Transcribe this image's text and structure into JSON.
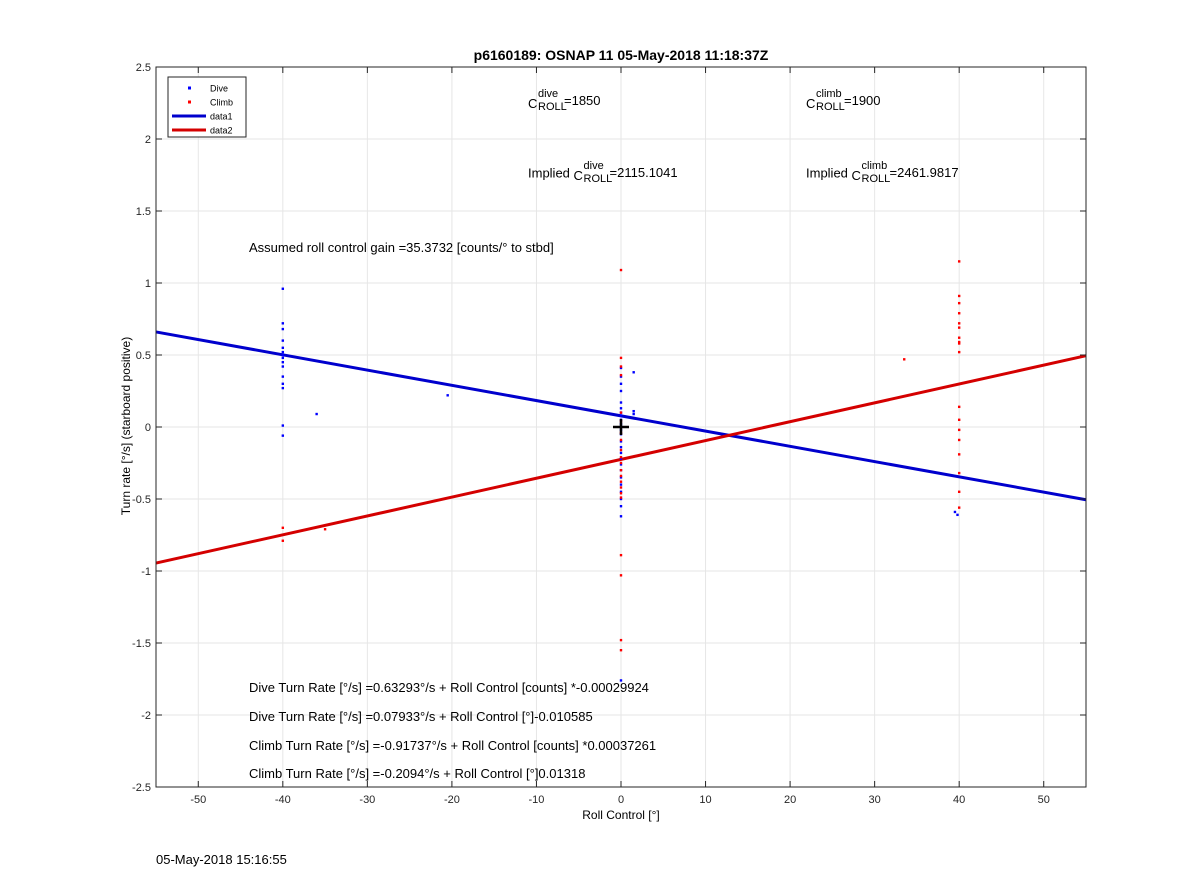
{
  "title": "p6160189: OSNAP 11 05-May-2018 11:18:37Z",
  "timestamp": "05-May-2018 15:16:55",
  "chart_data": {
    "type": "scatter",
    "title": "p6160189: OSNAP 11 05-May-2018 11:18:37Z",
    "xlabel": "Roll Control [°]",
    "ylabel": "Turn rate [°/s] (starboard positive)",
    "xlim": [
      -55,
      55
    ],
    "ylim": [
      -2.5,
      2.5
    ],
    "xticks": [
      -50,
      -40,
      -30,
      -20,
      -10,
      0,
      10,
      20,
      30,
      40,
      50
    ],
    "yticks": [
      -2.5,
      -2,
      -1.5,
      -1,
      -0.5,
      0,
      0.5,
      1,
      1.5,
      2,
      2.5
    ],
    "xtick_labels": [
      "-50",
      "-40",
      "-30",
      "-20",
      "-10",
      "0",
      "10",
      "20",
      "30",
      "40",
      "50"
    ],
    "ytick_labels": [
      "-2.5",
      "-2",
      "-1.5",
      "-1",
      "-0.5",
      "0",
      "0.5",
      "1",
      "1.5",
      "2",
      "2.5"
    ],
    "grid": true,
    "legend_position": "top-left",
    "legend": [
      {
        "label": "Dive",
        "type": "point",
        "color": "#0000ff"
      },
      {
        "label": "Climb",
        "type": "point",
        "color": "#ff0000"
      },
      {
        "label": "data1",
        "type": "line",
        "color": "#0000cd"
      },
      {
        "label": "data2",
        "type": "line",
        "color": "#d40000"
      }
    ],
    "series": [
      {
        "name": "Dive",
        "type": "scatter",
        "color": "#0000ff",
        "points": [
          [
            -40,
            0.96
          ],
          [
            -40,
            0.72
          ],
          [
            -40,
            0.68
          ],
          [
            -40,
            0.6
          ],
          [
            -40,
            0.55
          ],
          [
            -40,
            0.52
          ],
          [
            -40,
            0.5
          ],
          [
            -40,
            0.48
          ],
          [
            -40,
            0.45
          ],
          [
            -40,
            0.42
          ],
          [
            -40,
            0.35
          ],
          [
            -40,
            0.3
          ],
          [
            -40,
            0.27
          ],
          [
            -40,
            0.01
          ],
          [
            -40,
            -0.06
          ],
          [
            -36,
            0.09
          ],
          [
            -20.5,
            0.22
          ],
          [
            0,
            0.41
          ],
          [
            0,
            0.35
          ],
          [
            0,
            0.3
          ],
          [
            0,
            0.25
          ],
          [
            0,
            0.17
          ],
          [
            0,
            0.13
          ],
          [
            0,
            0.1
          ],
          [
            0,
            0.08
          ],
          [
            0,
            0.05
          ],
          [
            0,
            0.02
          ],
          [
            0,
            -0.02
          ],
          [
            0,
            -0.05
          ],
          [
            0,
            -0.1
          ],
          [
            0,
            -0.14
          ],
          [
            0,
            -0.18
          ],
          [
            0,
            -0.22
          ],
          [
            0,
            -0.26
          ],
          [
            0,
            -0.3
          ],
          [
            0,
            -0.35
          ],
          [
            0,
            -0.4
          ],
          [
            0,
            -0.45
          ],
          [
            0,
            -0.5
          ],
          [
            0,
            -0.55
          ],
          [
            0,
            -0.62
          ],
          [
            0,
            -1.76
          ],
          [
            1.5,
            0.38
          ],
          [
            1.5,
            0.11
          ],
          [
            1.5,
            0.09
          ],
          [
            39.5,
            -0.59
          ],
          [
            39.8,
            -0.61
          ]
        ]
      },
      {
        "name": "Climb",
        "type": "scatter",
        "color": "#ff0000",
        "points": [
          [
            -40,
            -0.7
          ],
          [
            -40,
            -0.79
          ],
          [
            -35,
            -0.71
          ],
          [
            0,
            1.09
          ],
          [
            0,
            0.48
          ],
          [
            0,
            0.42
          ],
          [
            0,
            0.36
          ],
          [
            0,
            0.1
          ],
          [
            0,
            0.04
          ],
          [
            0,
            -0.04
          ],
          [
            0,
            -0.09
          ],
          [
            0,
            -0.16
          ],
          [
            0,
            -0.21
          ],
          [
            0,
            -0.25
          ],
          [
            0,
            -0.3
          ],
          [
            0,
            -0.34
          ],
          [
            0,
            -0.38
          ],
          [
            0,
            -0.42
          ],
          [
            0,
            -0.46
          ],
          [
            0,
            -0.49
          ],
          [
            0,
            -0.89
          ],
          [
            0,
            -1.03
          ],
          [
            0,
            -1.48
          ],
          [
            0,
            -1.55
          ],
          [
            33.5,
            0.47
          ],
          [
            40,
            1.15
          ],
          [
            40,
            0.91
          ],
          [
            40,
            0.86
          ],
          [
            40,
            0.79
          ],
          [
            40,
            0.72
          ],
          [
            40,
            0.69
          ],
          [
            40,
            0.62
          ],
          [
            40,
            0.59
          ],
          [
            40,
            0.52
          ],
          [
            40,
            0.58
          ],
          [
            40,
            0.14
          ],
          [
            40,
            0.05
          ],
          [
            40,
            -0.02
          ],
          [
            40,
            -0.09
          ],
          [
            40,
            -0.19
          ],
          [
            40,
            -0.32
          ],
          [
            40,
            -0.45
          ],
          [
            40,
            -0.56
          ]
        ]
      },
      {
        "name": "data1",
        "type": "line",
        "color": "#0000cd",
        "points": [
          [
            -55,
            0.66
          ],
          [
            55,
            -0.505
          ]
        ]
      },
      {
        "name": "data2",
        "type": "line",
        "color": "#d40000",
        "points": [
          [
            -55,
            -0.945
          ],
          [
            55,
            0.495
          ]
        ]
      },
      {
        "type": "marker",
        "color": "#000000",
        "marker": "+",
        "points": [
          [
            0,
            0
          ]
        ]
      }
    ]
  },
  "annotations": {
    "c_dive": {
      "base": "C",
      "sup": "dive",
      "sub": "ROLL",
      "value": "=1850"
    },
    "c_climb": {
      "base": "C",
      "sup": "climb",
      "sub": "ROLL",
      "value": "=1900"
    },
    "implied_dive": {
      "prefix": "Implied ",
      "base": "C",
      "sup": "dive",
      "sub": "ROLL",
      "value": "=2115.1041"
    },
    "implied_climb": {
      "prefix": "Implied ",
      "base": "C",
      "sup": "climb",
      "sub": "ROLL",
      "value": "=2461.9817"
    },
    "gain": "Assumed roll control gain =35.3732 [counts/° to stbd]",
    "eq1": "Dive Turn Rate [°/s] =0.63293°/s + Roll Control [counts] *-0.00029924",
    "eq2": "Dive Turn Rate [°/s] =0.07933°/s + Roll Control [°]-0.010585",
    "eq3": "Climb Turn Rate [°/s] =-0.91737°/s + Roll Control [counts] *0.00037261",
    "eq4": "Climb Turn Rate [°/s] =-0.2094°/s + Roll Control [°]0.01318"
  }
}
